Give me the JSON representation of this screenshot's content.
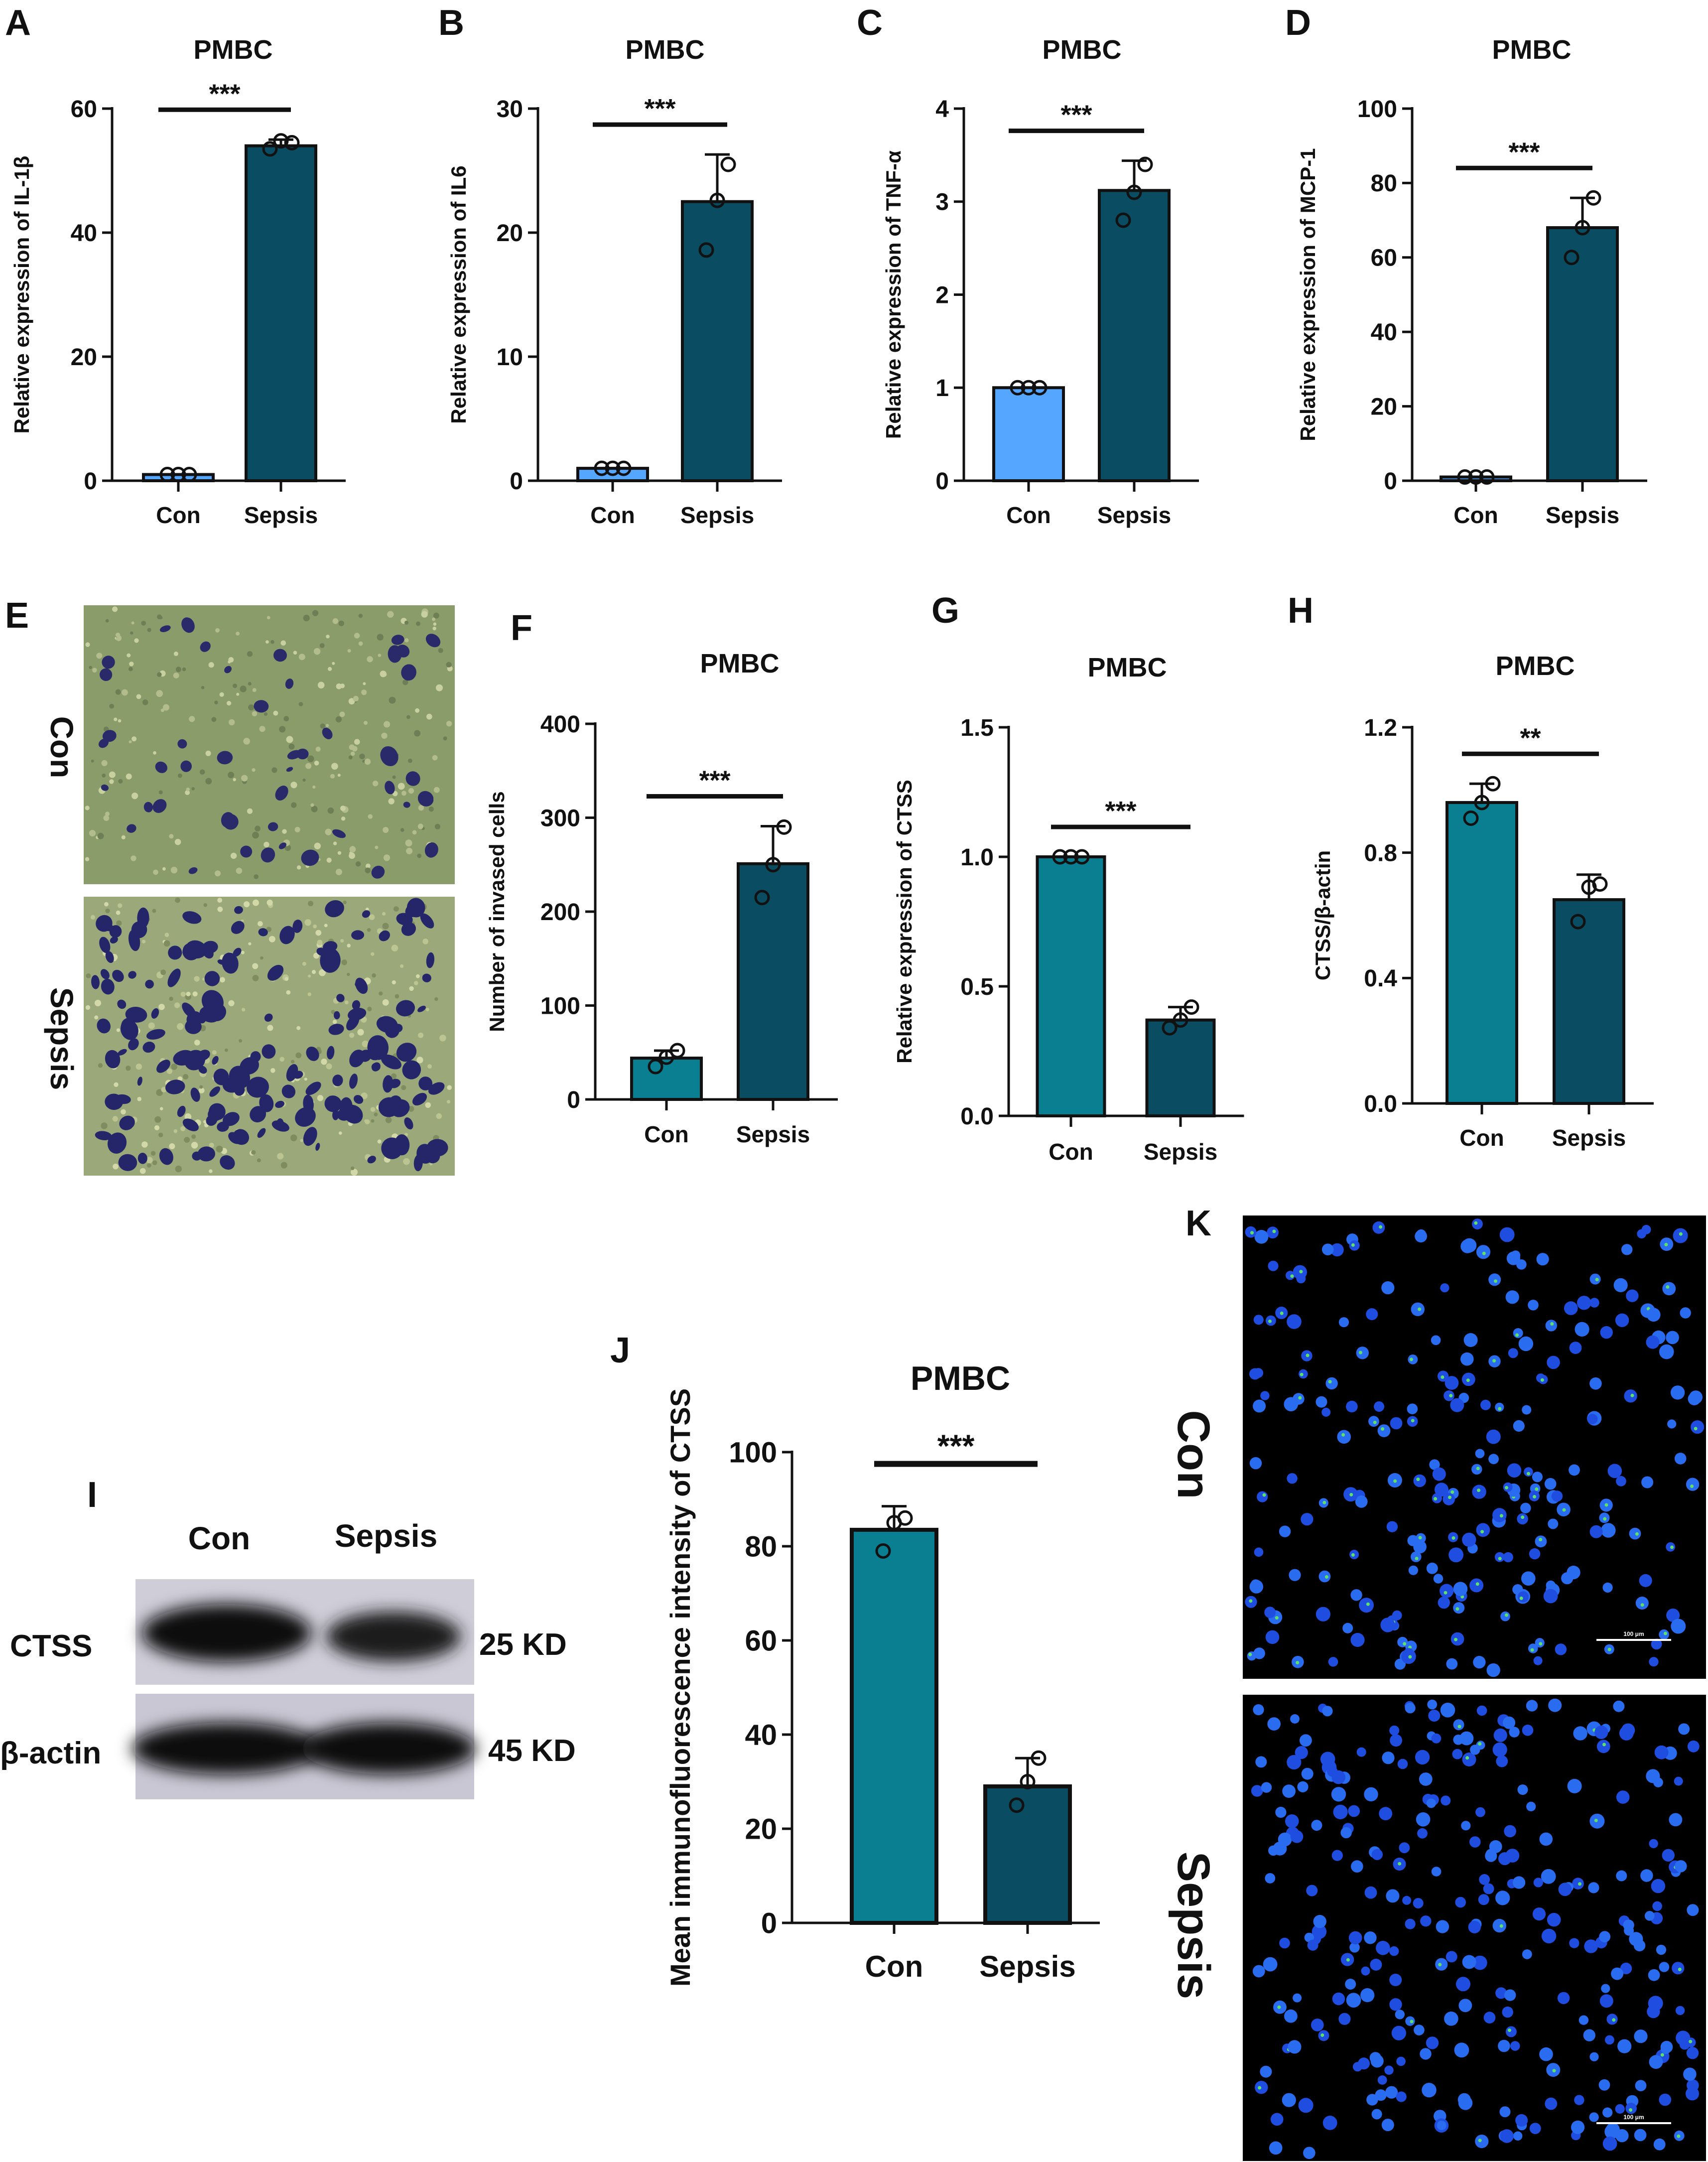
{
  "panel_letters": {
    "A": "A",
    "B": "B",
    "C": "C",
    "D": "D",
    "E": "E",
    "F": "F",
    "G": "G",
    "H": "H",
    "I": "I",
    "J": "J",
    "K": "K"
  },
  "colors": {
    "blue_light": "#55a6ff",
    "teal": "#0b7f92",
    "teal_dark": "#0a4d62",
    "axis": "#111111"
  },
  "chart_data": [
    {
      "id": "A",
      "type": "bar",
      "title": "PMBC",
      "ylabel": "Relative expression of IL-1β",
      "categories": [
        "Con",
        "Sepsis"
      ],
      "values": [
        1,
        54
      ],
      "errors": [
        0,
        1
      ],
      "points": [
        [
          1,
          1,
          1
        ],
        [
          53.5,
          54.8,
          54.5
        ]
      ],
      "ylim": [
        0,
        60
      ],
      "ticks": [
        "0",
        "20",
        "40",
        "60"
      ],
      "significance": "***",
      "bar_colors": [
        "#55a6ff",
        "#0a4d62"
      ]
    },
    {
      "id": "B",
      "type": "bar",
      "title": "PMBC",
      "ylabel": "Relative expression of IL6",
      "categories": [
        "Con",
        "Sepsis"
      ],
      "values": [
        1,
        22.5
      ],
      "errors": [
        0,
        3.8
      ],
      "points": [
        [
          1,
          1,
          1
        ],
        [
          18.6,
          22.6,
          25.5
        ]
      ],
      "ylim": [
        0,
        30
      ],
      "ticks": [
        "0",
        "10",
        "20",
        "30"
      ],
      "significance": "***",
      "bar_colors": [
        "#55a6ff",
        "#0a4d62"
      ]
    },
    {
      "id": "C",
      "type": "bar",
      "title": "PMBC",
      "ylabel": "Relative expression of TNF-α",
      "categories": [
        "Con",
        "Sepsis"
      ],
      "values": [
        1,
        3.12
      ],
      "errors": [
        0,
        0.32
      ],
      "points": [
        [
          1,
          1,
          1
        ],
        [
          2.8,
          3.1,
          3.4
        ]
      ],
      "ylim": [
        0,
        4
      ],
      "ticks": [
        "0",
        "1",
        "2",
        "3",
        "4"
      ],
      "significance": "***",
      "bar_colors": [
        "#55a6ff",
        "#0a4d62"
      ]
    },
    {
      "id": "D",
      "type": "bar",
      "title": "PMBC",
      "ylabel": "Relative expression of MCP-1",
      "categories": [
        "Con",
        "Sepsis"
      ],
      "values": [
        1,
        68
      ],
      "errors": [
        0,
        8
      ],
      "points": [
        [
          1,
          1,
          1
        ],
        [
          60,
          68,
          76
        ]
      ],
      "ylim": [
        0,
        100
      ],
      "ticks": [
        "0",
        "20",
        "40",
        "60",
        "80",
        "100"
      ],
      "significance": "***",
      "bar_colors": [
        "#55a6ff",
        "#0a4d62"
      ]
    },
    {
      "id": "F",
      "type": "bar",
      "title": "PMBC",
      "ylabel": "Number of invased cells",
      "categories": [
        "Con",
        "Sepsis"
      ],
      "values": [
        44,
        251
      ],
      "errors": [
        8,
        40
      ],
      "points": [
        [
          35,
          45,
          52
        ],
        [
          215,
          250,
          290
        ]
      ],
      "ylim": [
        0,
        400
      ],
      "ticks": [
        "0",
        "100",
        "200",
        "300",
        "400"
      ],
      "significance": "***",
      "bar_colors": [
        "#0b7f92",
        "#0a4d62"
      ]
    },
    {
      "id": "G",
      "type": "bar",
      "title": "PMBC",
      "ylabel": "Relative expression of CTSS",
      "categories": [
        "Con",
        "Sepsis"
      ],
      "values": [
        1.0,
        0.37
      ],
      "errors": [
        0,
        0.05
      ],
      "points": [
        [
          1,
          1,
          1
        ],
        [
          0.34,
          0.37,
          0.42
        ]
      ],
      "ylim": [
        0,
        1.5
      ],
      "ticks": [
        "0.0",
        "0.5",
        "1.0",
        "1.5"
      ],
      "significance": "***",
      "bar_colors": [
        "#0b7f92",
        "#0a4d62"
      ]
    },
    {
      "id": "H",
      "type": "bar",
      "title": "PMBC",
      "ylabel": "CTSS/β-actin",
      "categories": [
        "Con",
        "Sepsis"
      ],
      "values": [
        0.96,
        0.65
      ],
      "errors": [
        0.06,
        0.08
      ],
      "points": [
        [
          0.91,
          0.96,
          1.02
        ],
        [
          0.58,
          0.69,
          0.7
        ]
      ],
      "ylim": [
        0,
        1.2
      ],
      "ticks": [
        "0.0",
        "0.4",
        "0.8",
        "1.2"
      ],
      "significance": "**",
      "bar_colors": [
        "#0b7f92",
        "#0a4d62"
      ]
    },
    {
      "id": "J",
      "type": "bar",
      "title": "PMBC",
      "ylabel": "Mean immunofluorescence intensity of CTSS",
      "categories": [
        "Con",
        "Sepsis"
      ],
      "values": [
        83.5,
        29
      ],
      "errors": [
        5,
        6
      ],
      "points": [
        [
          79,
          85,
          86
        ],
        [
          25,
          30,
          35
        ]
      ],
      "ylim": [
        0,
        100
      ],
      "ticks": [
        "0",
        "20",
        "40",
        "60",
        "80",
        "100"
      ],
      "significance": "***",
      "bar_colors": [
        "#0b7f92",
        "#0a4d62"
      ]
    }
  ],
  "panel_E": {
    "row_labels": [
      "Con",
      "Sepsis"
    ]
  },
  "panel_I": {
    "col_labels": [
      "Con",
      "Sepsis"
    ],
    "row_labels": [
      "CTSS",
      "β-actin"
    ],
    "sizes": [
      "25 KD",
      "45 KD"
    ]
  },
  "panel_K": {
    "row_labels": [
      "Con",
      "Sepsis"
    ],
    "scale_label": "100 μm"
  }
}
